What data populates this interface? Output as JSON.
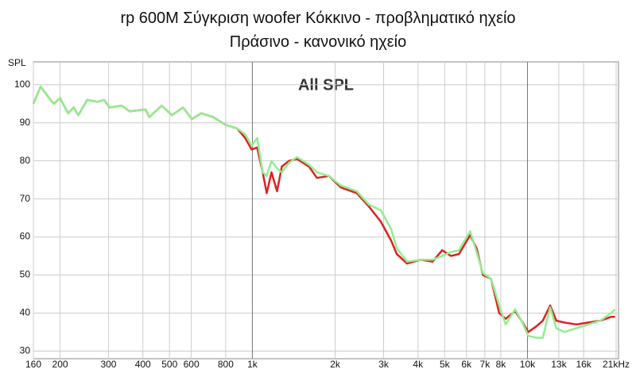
{
  "chart_data": {
    "type": "line",
    "title": "rp 600M Σύγκριση woofer Κόκκινο - προβληματικό ηχείο Πράσινο - κανονικό ηχείο",
    "annotation": "All SPL",
    "y_label": "SPL",
    "xscale": "log",
    "grid": true,
    "xlim": [
      160,
      21000
    ],
    "ylim": [
      28,
      106
    ],
    "xticks": [
      160,
      200,
      300,
      400,
      500,
      600,
      800,
      {
        "value": 1000,
        "label": "1k"
      },
      {
        "value": 2000,
        "label": "2k"
      },
      {
        "value": 3000,
        "label": "3k"
      },
      {
        "value": 4000,
        "label": "4k"
      },
      {
        "value": 5000,
        "label": "5k"
      },
      {
        "value": 6000,
        "label": "6k"
      },
      {
        "value": 7000,
        "label": "7k"
      },
      {
        "value": 8000,
        "label": "8k"
      },
      {
        "value": 10000,
        "label": "10k"
      },
      {
        "value": 13000,
        "label": "13k"
      },
      {
        "value": 16000,
        "label": "16k"
      },
      {
        "value": 21000,
        "label": "21kHz"
      }
    ],
    "yticks": [
      30,
      40,
      50,
      60,
      70,
      80,
      90,
      100
    ],
    "x": [
      160,
      170,
      187,
      190,
      200,
      214,
      224,
      233,
      251,
      274,
      289,
      303,
      335,
      358,
      409,
      422,
      468,
      510,
      560,
      602,
      653,
      721,
      797,
      881,
      942,
      993,
      1041,
      1090,
      1128,
      1174,
      1230,
      1280,
      1359,
      1453,
      1606,
      1717,
      1898,
      2099,
      2398,
      2651,
      2932,
      3197,
      3349,
      3651,
      4085,
      4518,
      4896,
      5267,
      5634,
      6188,
      6531,
      6892,
      7375,
      7889,
      8326,
      9018,
      9514,
      10070,
      10777,
      11370,
      12090,
      12730,
      13610,
      15060,
      16650,
      18410,
      20110,
      20800
    ],
    "series": [
      {
        "color": "#e02020",
        "values": [
          95,
          99.5,
          95.5,
          95,
          96.5,
          92.5,
          94,
          92,
          96,
          95.5,
          96,
          94,
          94.5,
          93,
          93.5,
          91.5,
          94.5,
          92,
          94,
          91,
          92.5,
          91.5,
          89.5,
          88.5,
          86,
          83,
          83.5,
          77,
          71.5,
          77,
          72,
          78.5,
          80,
          80.5,
          78.5,
          75.5,
          76,
          73,
          71.5,
          68,
          64,
          59,
          55.5,
          53,
          54,
          53.5,
          56.5,
          55,
          55.5,
          60.5,
          57,
          50,
          49,
          40,
          38.5,
          40.5,
          38,
          35,
          36.5,
          38,
          42,
          38,
          37.5,
          37,
          37.5,
          38,
          39,
          39
        ]
      },
      {
        "color": "#90ee90",
        "values": [
          95,
          99.5,
          95.5,
          95,
          96.5,
          92.5,
          94,
          92,
          96,
          95.5,
          96,
          94,
          94.5,
          93,
          93.5,
          91.5,
          94.5,
          92,
          94,
          91,
          92.5,
          91.5,
          89.5,
          88.5,
          87,
          84,
          86,
          77,
          76,
          80,
          78,
          77,
          79.5,
          81,
          79,
          77,
          76,
          73.5,
          72,
          68.5,
          67,
          62,
          57,
          53.5,
          54,
          54,
          55,
          56,
          56.5,
          61.5,
          56,
          50.5,
          49,
          42,
          37,
          41,
          38,
          34,
          33.5,
          33.5,
          41.5,
          36,
          35,
          36,
          37,
          38,
          40,
          41
        ]
      }
    ]
  }
}
